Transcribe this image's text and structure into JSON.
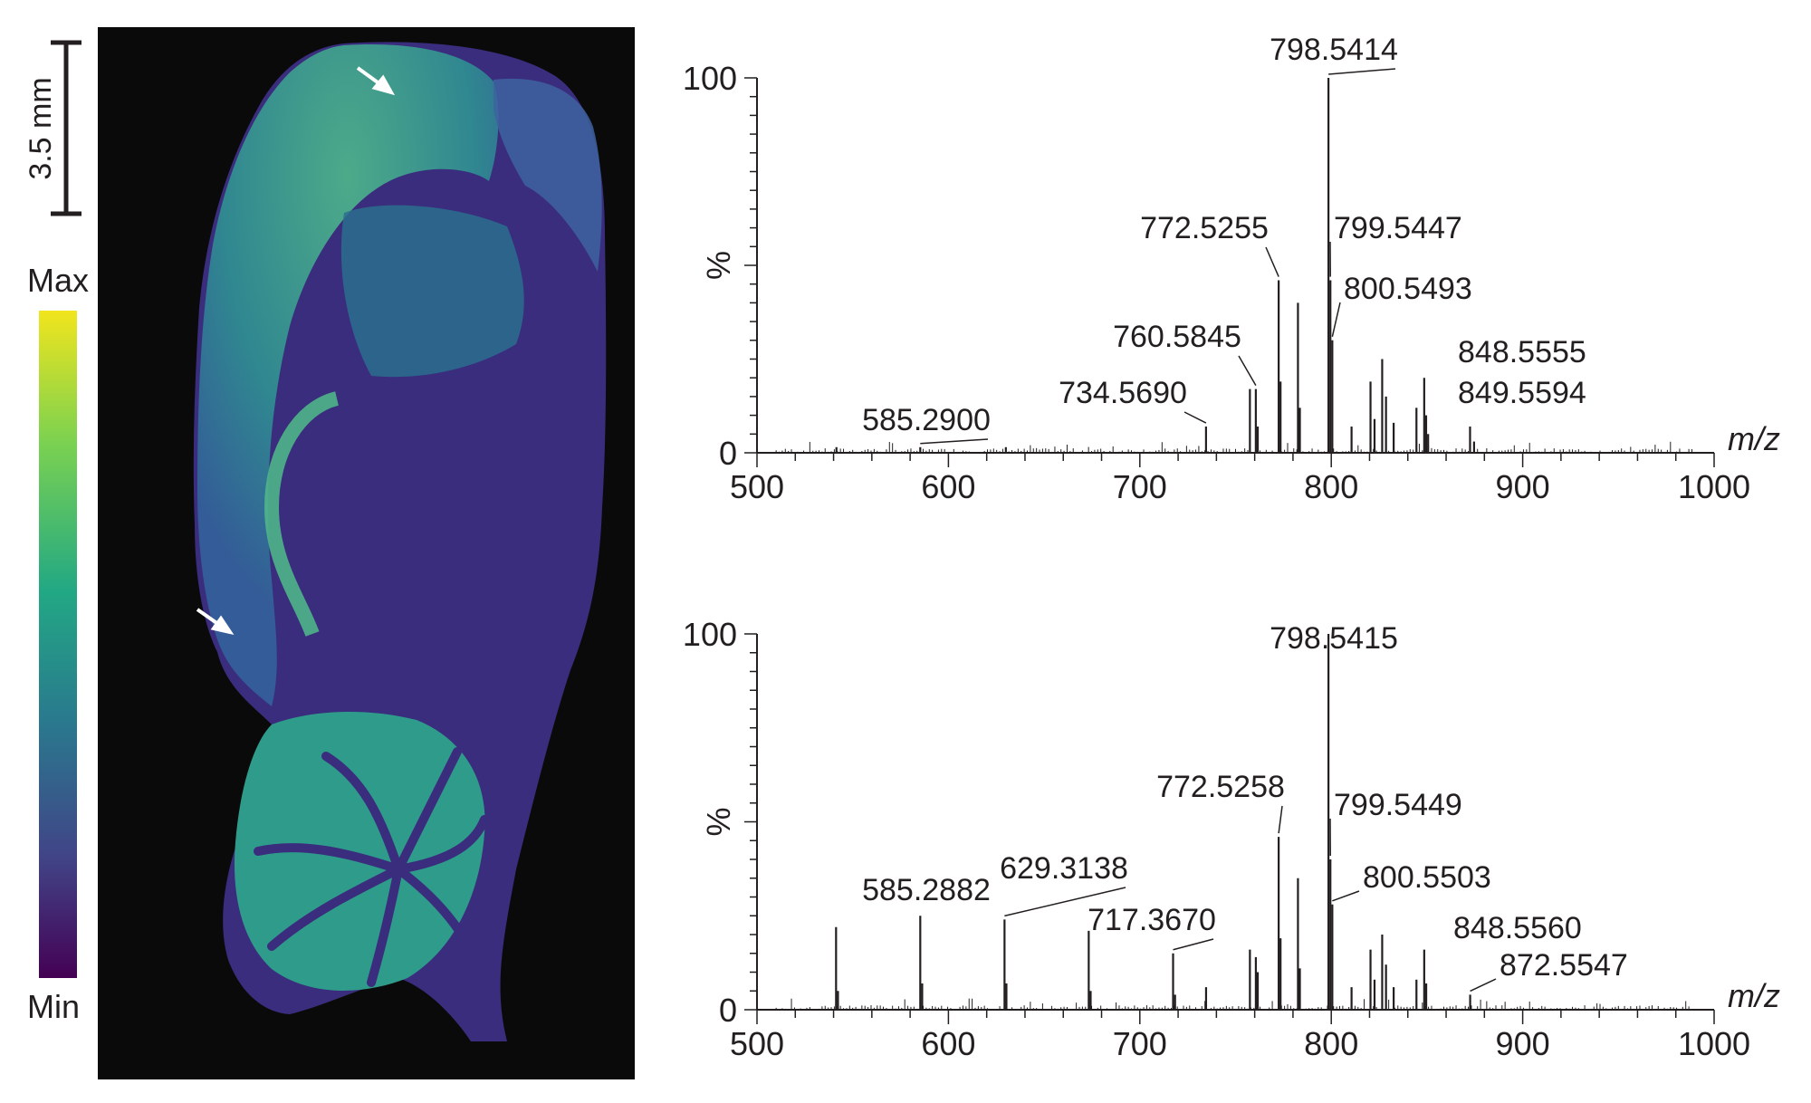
{
  "scale_bar": {
    "label": "3.5 mm"
  },
  "colorbar": {
    "max_label": "Max",
    "min_label": "Min",
    "colors": [
      "#f1e51d",
      "#7ad151",
      "#22a884",
      "#2a788e",
      "#414487",
      "#440154"
    ]
  },
  "tissue_image": {
    "description_icons": [
      "arrow-icon",
      "arrow-icon"
    ],
    "colors": {
      "background": "#0a0a0a",
      "low": "#3b2a7a",
      "mid": "#2c8a8c",
      "high": "#6ccf63",
      "peak": "#c8e040"
    }
  },
  "chart_data": [
    {
      "type": "bar",
      "title": "",
      "xlabel": "m/z",
      "ylabel": "%",
      "xlim": [
        500,
        1000
      ],
      "ylim": [
        0,
        100
      ],
      "xticks": [
        500,
        600,
        700,
        800,
        900,
        1000
      ],
      "yticks": [
        0,
        100
      ],
      "peaks": [
        {
          "x": 541.5,
          "y": 1.5
        },
        {
          "x": 585.29,
          "y": 1.5
        },
        {
          "x": 630.0,
          "y": 1.5
        },
        {
          "x": 734.569,
          "y": 7
        },
        {
          "x": 757.5,
          "y": 17
        },
        {
          "x": 760.5845,
          "y": 17
        },
        {
          "x": 761.6,
          "y": 7
        },
        {
          "x": 772.5255,
          "y": 46
        },
        {
          "x": 773.5,
          "y": 19
        },
        {
          "x": 782.6,
          "y": 40
        },
        {
          "x": 783.6,
          "y": 12
        },
        {
          "x": 798.5414,
          "y": 100
        },
        {
          "x": 799.5447,
          "y": 46
        },
        {
          "x": 800.5493,
          "y": 30
        },
        {
          "x": 810.6,
          "y": 7
        },
        {
          "x": 820.5,
          "y": 19
        },
        {
          "x": 822.6,
          "y": 9
        },
        {
          "x": 826.6,
          "y": 25
        },
        {
          "x": 828.6,
          "y": 15
        },
        {
          "x": 832.6,
          "y": 8
        },
        {
          "x": 844.5,
          "y": 12
        },
        {
          "x": 848.5555,
          "y": 20
        },
        {
          "x": 849.5594,
          "y": 10
        },
        {
          "x": 850.6,
          "y": 5
        },
        {
          "x": 872.5,
          "y": 7
        },
        {
          "x": 874.6,
          "y": 3
        }
      ],
      "annotations": [
        {
          "label": "798.5414",
          "x": 798.5414,
          "y": 100
        },
        {
          "label": "772.5255",
          "x": 772.5255,
          "y": 46
        },
        {
          "label": "799.5447",
          "x": 799.5447,
          "y": 46
        },
        {
          "label": "800.5493",
          "x": 800.5493,
          "y": 30
        },
        {
          "label": "760.5845",
          "x": 760.5845,
          "y": 17
        },
        {
          "label": "848.5555",
          "x": 848.5555,
          "y": 20
        },
        {
          "label": "849.5594",
          "x": 849.5594,
          "y": 10
        },
        {
          "label": "734.5690",
          "x": 734.569,
          "y": 7
        },
        {
          "label": "585.2900",
          "x": 585.29,
          "y": 1.5
        }
      ]
    },
    {
      "type": "bar",
      "title": "",
      "xlabel": "m/z",
      "ylabel": "%",
      "xlim": [
        500,
        1000
      ],
      "ylim": [
        0,
        100
      ],
      "xticks": [
        500,
        600,
        700,
        800,
        900,
        1000
      ],
      "yticks": [
        0,
        100
      ],
      "peaks": [
        {
          "x": 541.3,
          "y": 22
        },
        {
          "x": 542.3,
          "y": 5
        },
        {
          "x": 585.2882,
          "y": 25
        },
        {
          "x": 586.3,
          "y": 7
        },
        {
          "x": 629.3138,
          "y": 24
        },
        {
          "x": 630.3,
          "y": 7
        },
        {
          "x": 673.3,
          "y": 21
        },
        {
          "x": 674.3,
          "y": 5
        },
        {
          "x": 717.367,
          "y": 15
        },
        {
          "x": 718.4,
          "y": 4
        },
        {
          "x": 734.6,
          "y": 6
        },
        {
          "x": 757.5,
          "y": 16
        },
        {
          "x": 760.6,
          "y": 14
        },
        {
          "x": 761.6,
          "y": 10
        },
        {
          "x": 772.5258,
          "y": 46
        },
        {
          "x": 773.5,
          "y": 19
        },
        {
          "x": 782.6,
          "y": 35
        },
        {
          "x": 783.6,
          "y": 11
        },
        {
          "x": 798.5415,
          "y": 100
        },
        {
          "x": 799.5449,
          "y": 40
        },
        {
          "x": 800.5503,
          "y": 28
        },
        {
          "x": 810.6,
          "y": 6
        },
        {
          "x": 820.5,
          "y": 16
        },
        {
          "x": 822.6,
          "y": 8
        },
        {
          "x": 826.6,
          "y": 20
        },
        {
          "x": 828.6,
          "y": 12
        },
        {
          "x": 832.6,
          "y": 6
        },
        {
          "x": 844.5,
          "y": 8
        },
        {
          "x": 848.556,
          "y": 16
        },
        {
          "x": 849.6,
          "y": 7
        },
        {
          "x": 872.5547,
          "y": 4
        }
      ],
      "annotations": [
        {
          "label": "798.5415",
          "x": 798.5415,
          "y": 100
        },
        {
          "label": "772.5258",
          "x": 772.5258,
          "y": 46
        },
        {
          "label": "799.5449",
          "x": 799.5449,
          "y": 40
        },
        {
          "label": "800.5503",
          "x": 800.5503,
          "y": 28
        },
        {
          "label": "585.2882",
          "x": 585.2882,
          "y": 25
        },
        {
          "label": "629.3138",
          "x": 629.3138,
          "y": 24
        },
        {
          "label": "717.3670",
          "x": 717.367,
          "y": 15
        },
        {
          "label": "848.5560",
          "x": 848.556,
          "y": 16
        },
        {
          "label": "872.5547",
          "x": 872.5547,
          "y": 4
        }
      ]
    }
  ]
}
